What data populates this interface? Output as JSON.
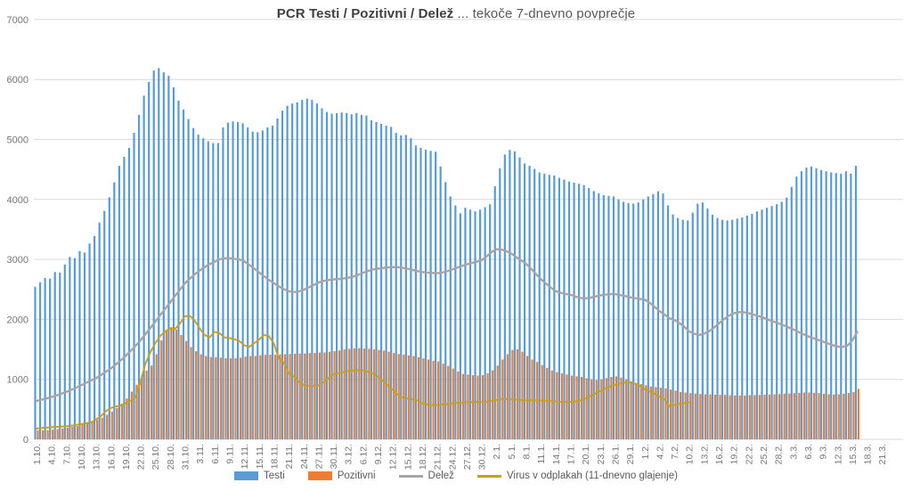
{
  "title": {
    "bold": "PCR Testi / Pozitivni / Delež",
    "regular": " ... tekoče 7-dnevno povprečje"
  },
  "colors": {
    "testi": "#5B9BD5",
    "pozitivni": "#ED7D31",
    "delez": "#A6A6A6",
    "virus": "#C5A021",
    "gridline": "#D9D9D9",
    "axis_label": "#757575",
    "title_text": "#595959"
  },
  "legend": {
    "items": [
      {
        "label": "Testi",
        "swatch": "bar",
        "color": "#5B9BD5"
      },
      {
        "label": "Pozitivni",
        "swatch": "bar",
        "color": "#ED7D31"
      },
      {
        "label": "Delež",
        "swatch": "line",
        "color": "#A6A6A6"
      },
      {
        "label": "Virus v odplakah (11-dnevno glajenje)",
        "swatch": "line",
        "color": "#C5A021"
      }
    ]
  },
  "chart_data": {
    "type": "bar",
    "subtype": "combo-bar-line",
    "title": "PCR Testi / Pozitivni / Delež ... tekoče 7-dnevno povprečje",
    "xlabel": "",
    "ylabel": "",
    "ylim": [
      0,
      7000
    ],
    "y_ticks": [
      0,
      1000,
      2000,
      3000,
      4000,
      5000,
      6000,
      7000
    ],
    "grid": true,
    "legend_position": "bottom",
    "x_start": "1.10.",
    "x_frequency": "daily",
    "x_tick_every_days": 3,
    "x_tick_labels": [
      "1.10.",
      "4.10.",
      "7.10.",
      "10.10.",
      "13.10.",
      "16.10.",
      "19.10.",
      "22.10.",
      "25.10.",
      "28.10.",
      "31.10.",
      "3.11.",
      "6.11.",
      "9.11.",
      "12.11.",
      "15.11.",
      "18.11.",
      "21.11.",
      "24.11.",
      "27.11.",
      "30.11.",
      "3.12.",
      "6.12.",
      "9.12.",
      "12.12.",
      "15.12.",
      "18.12.",
      "21.12.",
      "24.12.",
      "27.12.",
      "30.12.",
      "2.1.",
      "5.1.",
      "8.1.",
      "11.1.",
      "14.1.",
      "17.1.",
      "20.1.",
      "23.1.",
      "26.1.",
      "29.1.",
      "1.2.",
      "4.2.",
      "7.2.",
      "10.2.",
      "13.2.",
      "16.2.",
      "19.2.",
      "22.2.",
      "25.2.",
      "28.2.",
      "3.3.",
      "6.3.",
      "9.3.",
      "12.3.",
      "15.3.",
      "18.3.",
      "21.3."
    ],
    "series": [
      {
        "name": "Testi",
        "kind": "bar",
        "color": "#5B9BD5",
        "values": [
          2545,
          2620,
          2690,
          2680,
          2790,
          2780,
          2915,
          3040,
          3020,
          3140,
          3115,
          3265,
          3390,
          3615,
          3810,
          4035,
          4285,
          4560,
          4710,
          4860,
          5110,
          5410,
          5730,
          5960,
          6150,
          6190,
          6120,
          6060,
          5870,
          5650,
          5500,
          5340,
          5190,
          5080,
          5020,
          4970,
          4940,
          4940,
          5200,
          5280,
          5300,
          5290,
          5270,
          5200,
          5130,
          5120,
          5150,
          5200,
          5230,
          5350,
          5480,
          5560,
          5600,
          5620,
          5660,
          5680,
          5660,
          5600,
          5520,
          5460,
          5430,
          5440,
          5450,
          5440,
          5420,
          5440,
          5410,
          5400,
          5320,
          5290,
          5260,
          5230,
          5210,
          5110,
          5070,
          5075,
          5020,
          4900,
          4860,
          4830,
          4810,
          4795,
          4550,
          4290,
          4050,
          3900,
          3770,
          3860,
          3830,
          3800,
          3830,
          3870,
          3920,
          4220,
          4520,
          4750,
          4825,
          4800,
          4700,
          4600,
          4560,
          4510,
          4450,
          4430,
          4410,
          4400,
          4360,
          4330,
          4300,
          4280,
          4260,
          4240,
          4190,
          4140,
          4100,
          4070,
          4060,
          4050,
          4000,
          3960,
          3940,
          3930,
          3950,
          4000,
          4050,
          4090,
          4135,
          4100,
          3900,
          3750,
          3690,
          3660,
          3650,
          3780,
          3930,
          3950,
          3850,
          3745,
          3690,
          3660,
          3650,
          3660,
          3680,
          3700,
          3730,
          3760,
          3800,
          3830,
          3860,
          3890,
          3920,
          3960,
          4030,
          4210,
          4380,
          4470,
          4530,
          4550,
          4520,
          4490,
          4470,
          4450,
          4440,
          4430,
          4470,
          4430,
          4560
        ]
      },
      {
        "name": "Pozitivni",
        "kind": "bar",
        "color": "#ED7D31",
        "values": [
          150,
          150,
          152,
          160,
          170,
          180,
          195,
          210,
          222,
          245,
          270,
          296,
          322,
          360,
          410,
          462,
          520,
          595,
          680,
          795,
          910,
          1030,
          1145,
          1230,
          1420,
          1650,
          1820,
          1870,
          1830,
          1740,
          1640,
          1540,
          1470,
          1420,
          1390,
          1372,
          1370,
          1362,
          1352,
          1350,
          1352,
          1360,
          1380,
          1388,
          1390,
          1400,
          1408,
          1410,
          1410,
          1418,
          1420,
          1425,
          1428,
          1430,
          1430,
          1438,
          1440,
          1448,
          1450,
          1458,
          1470,
          1482,
          1500,
          1510,
          1518,
          1520,
          1515,
          1510,
          1500,
          1490,
          1480,
          1460,
          1440,
          1422,
          1410,
          1400,
          1390,
          1370,
          1350,
          1330,
          1310,
          1300,
          1262,
          1222,
          1180,
          1130,
          1090,
          1080,
          1070,
          1062,
          1070,
          1100,
          1150,
          1230,
          1330,
          1420,
          1490,
          1500,
          1460,
          1390,
          1330,
          1290,
          1240,
          1190,
          1150,
          1120,
          1100,
          1080,
          1062,
          1050,
          1040,
          1020,
          1000,
          990,
          1000,
          1020,
          1040,
          1050,
          1030,
          1000,
          970,
          940,
          920,
          900,
          880,
          870,
          860,
          850,
          830,
          810,
          790,
          780,
          770,
          762,
          755,
          750,
          750,
          745,
          742,
          740,
          736,
          732,
          730,
          730,
          735,
          738,
          740,
          744,
          746,
          750,
          755,
          760,
          765,
          770,
          775,
          780,
          780,
          775,
          770,
          760,
          752,
          746,
          750,
          760,
          772,
          790,
          840
        ]
      },
      {
        "name": "Delež",
        "kind": "line",
        "color": "#A6A6A6",
        "values": [
          640,
          660,
          680,
          705,
          730,
          760,
          790,
          825,
          860,
          900,
          940,
          980,
          1020,
          1070,
          1125,
          1180,
          1245,
          1315,
          1390,
          1470,
          1555,
          1650,
          1750,
          1855,
          1960,
          2070,
          2175,
          2280,
          2390,
          2495,
          2600,
          2680,
          2750,
          2815,
          2870,
          2920,
          2960,
          3000,
          3020,
          3020,
          3010,
          3000,
          2970,
          2910,
          2850,
          2785,
          2720,
          2660,
          2605,
          2550,
          2505,
          2470,
          2455,
          2465,
          2490,
          2530,
          2570,
          2610,
          2640,
          2655,
          2665,
          2672,
          2680,
          2692,
          2712,
          2740,
          2775,
          2805,
          2830,
          2845,
          2856,
          2865,
          2872,
          2870,
          2860,
          2845,
          2826,
          2806,
          2790,
          2780,
          2774,
          2770,
          2780,
          2800,
          2830,
          2860,
          2890,
          2916,
          2940,
          2960,
          2985,
          3045,
          3120,
          3170,
          3165,
          3140,
          3100,
          3040,
          2985,
          2930,
          2845,
          2760,
          2672,
          2600,
          2530,
          2472,
          2445,
          2425,
          2410,
          2380,
          2356,
          2350,
          2360,
          2380,
          2400,
          2412,
          2420,
          2420,
          2406,
          2390,
          2370,
          2355,
          2340,
          2330,
          2280,
          2210,
          2140,
          2080,
          2020,
          1990,
          1940,
          1880,
          1800,
          1760,
          1740,
          1760,
          1800,
          1860,
          1930,
          2000,
          2060,
          2100,
          2120,
          2120,
          2105,
          2080,
          2055,
          2030,
          1995,
          1965,
          1935,
          1905,
          1870,
          1835,
          1795,
          1755,
          1720,
          1690,
          1660,
          1630,
          1600,
          1570,
          1548,
          1540,
          1560,
          1645,
          1790
        ]
      },
      {
        "name": "Virus v odplakah (11-dnevno glajenje)",
        "kind": "line",
        "color": "#C5A021",
        "values": [
          180,
          188,
          194,
          200,
          206,
          212,
          218,
          228,
          240,
          254,
          268,
          282,
          330,
          385,
          470,
          520,
          545,
          565,
          600,
          640,
          700,
          950,
          1250,
          1450,
          1600,
          1720,
          1800,
          1850,
          1840,
          1930,
          2050,
          2060,
          1980,
          1850,
          1740,
          1700,
          1790,
          1770,
          1700,
          1690,
          1670,
          1640,
          1570,
          1540,
          1600,
          1660,
          1740,
          1720,
          1600,
          1350,
          1280,
          1100,
          1050,
          960,
          910,
          895,
          890,
          900,
          950,
          1020,
          1080,
          1100,
          1120,
          1135,
          1145,
          1150,
          1150,
          1130,
          1100,
          1050,
          980,
          900,
          830,
          750,
          700,
          680,
          668,
          650,
          600,
          582,
          572,
          570,
          578,
          588,
          598,
          608,
          612,
          618,
          620,
          624,
          626,
          630,
          640,
          655,
          665,
          670,
          665,
          660,
          655,
          650,
          650,
          650,
          648,
          645,
          640,
          632,
          622,
          620,
          624,
          632,
          650,
          680,
          720,
          762,
          802,
          842,
          880,
          910,
          932,
          946,
          950,
          930,
          890,
          840,
          800,
          760,
          710,
          670,
          552,
          572,
          592,
          602,
          615,
          null,
          null,
          null,
          null,
          null,
          null,
          null,
          null,
          null,
          null,
          null,
          null,
          null,
          null,
          null,
          null,
          null,
          null,
          null,
          null,
          null,
          null,
          null,
          null,
          null,
          null,
          null,
          null,
          null,
          null,
          null,
          null,
          null,
          null
        ]
      }
    ]
  }
}
